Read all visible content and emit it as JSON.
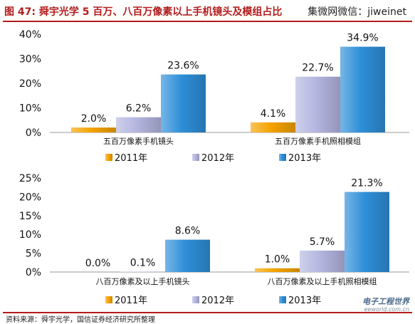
{
  "header": {
    "title": "图 47:  舜宇光学 5 百万、八百万像素以上手机镜头及模组占比",
    "source": "集微网微信：jiweinet"
  },
  "footer": {
    "note": "资料来源：舜宇光学，国信证券经济研究所整理"
  },
  "watermark": {
    "main": "电子工程世界",
    "sub": "eeworld.com.cn"
  },
  "colors": {
    "series_2011": "#f5a300",
    "series_2012": "#b4b6e0",
    "series_2013": "#2e8fd8",
    "accent": "#b31c1c"
  },
  "chart_data": [
    {
      "type": "bar",
      "categories": [
        "五百万像素手机镜头",
        "五百万像素手机照相模组"
      ],
      "series": [
        {
          "name": "2011年",
          "values": [
            2.0,
            4.1
          ]
        },
        {
          "name": "2012年",
          "values": [
            6.2,
            22.7
          ]
        },
        {
          "name": "2013年",
          "values": [
            23.6,
            34.9
          ]
        }
      ],
      "data_labels": [
        [
          "2.0%",
          "6.2%",
          "23.6%"
        ],
        [
          "4.1%",
          "22.7%",
          "34.9%"
        ]
      ],
      "yticks": [
        "0%",
        "10%",
        "20%",
        "30%",
        "40%"
      ],
      "ylim": [
        0,
        40
      ],
      "legend": "bottom"
    },
    {
      "type": "bar",
      "categories": [
        "八百万像素及以上手机镜头",
        "八百万像素及以上手机照相模组"
      ],
      "series": [
        {
          "name": "2011年",
          "values": [
            0.0,
            1.0
          ]
        },
        {
          "name": "2012年",
          "values": [
            0.1,
            5.7
          ]
        },
        {
          "name": "2013年",
          "values": [
            8.6,
            21.3
          ]
        }
      ],
      "data_labels": [
        [
          "0.0%",
          "0.1%",
          "8.6%"
        ],
        [
          "1.0%",
          "5.7%",
          "21.3%"
        ]
      ],
      "yticks": [
        "0%",
        "5%",
        "10%",
        "15%",
        "20%",
        "25%"
      ],
      "ylim": [
        0,
        25
      ],
      "legend": "bottom"
    }
  ]
}
